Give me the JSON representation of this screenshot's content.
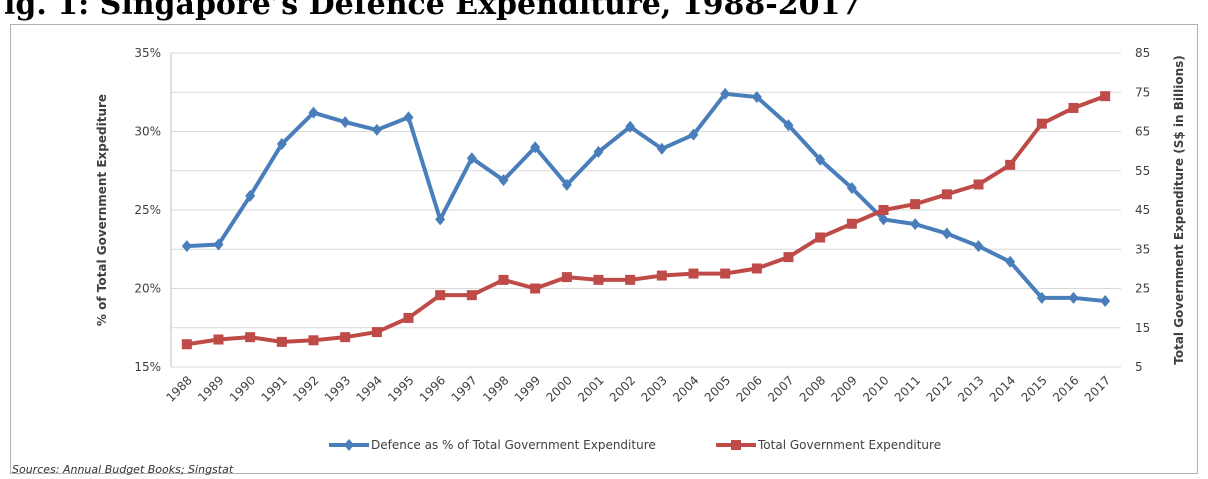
{
  "page": {
    "title": "ig. 1: Singapore’s Defence Expenditure, 1988-2017",
    "source": "Sources: Annual Budget Books; Singstat"
  },
  "chart_data": {
    "type": "line",
    "title": "",
    "xlabel": "",
    "ylabel": "% of Total Government Expediture",
    "y2label": "Total Government Expenditure (S$ in Billions)",
    "x": [
      1988,
      1989,
      1990,
      1991,
      1992,
      1993,
      1994,
      1995,
      1996,
      1997,
      1998,
      1999,
      2000,
      2001,
      2002,
      2003,
      2004,
      2005,
      2006,
      2007,
      2008,
      2009,
      2010,
      2011,
      2012,
      2013,
      2014,
      2015,
      2016,
      2017
    ],
    "ylim": [
      15,
      35
    ],
    "yticks": [
      15,
      20,
      25,
      30,
      35
    ],
    "ytick_labels": [
      "15%",
      "20%",
      "25%",
      "30%",
      "35%"
    ],
    "y2lim": [
      5,
      85
    ],
    "y2ticks": [
      5,
      15,
      25,
      35,
      45,
      55,
      65,
      75,
      85
    ],
    "grid": true,
    "legend_position": "bottom",
    "series": [
      {
        "name": "Defence as % of Total Government Expenditure",
        "axis": "left",
        "color": "#4a7ebb",
        "marker": "diamond",
        "values": [
          22.7,
          22.8,
          25.9,
          29.2,
          31.2,
          30.6,
          30.1,
          30.9,
          24.4,
          28.3,
          26.9,
          29.0,
          26.6,
          28.7,
          30.3,
          28.9,
          29.8,
          32.4,
          32.2,
          30.4,
          28.2,
          26.4,
          24.4,
          24.1,
          23.5,
          22.7,
          21.7,
          19.4,
          19.4,
          19.2
        ]
      },
      {
        "name": "Total Government Expenditure",
        "axis": "right",
        "color": "#be4b48",
        "marker": "square",
        "values": [
          10.8,
          12.0,
          12.6,
          11.4,
          11.8,
          12.6,
          13.9,
          17.5,
          23.3,
          23.3,
          27.2,
          25.0,
          27.9,
          27.2,
          27.2,
          28.3,
          28.8,
          28.8,
          30.1,
          33.0,
          38.0,
          41.5,
          45.0,
          46.5,
          49.0,
          51.5,
          56.5,
          67.0,
          71.0,
          74.0
        ]
      }
    ]
  },
  "colors": {
    "defence": "#4a7ebb",
    "expenditure": "#be4b48",
    "grid": "#d9d9d9"
  }
}
